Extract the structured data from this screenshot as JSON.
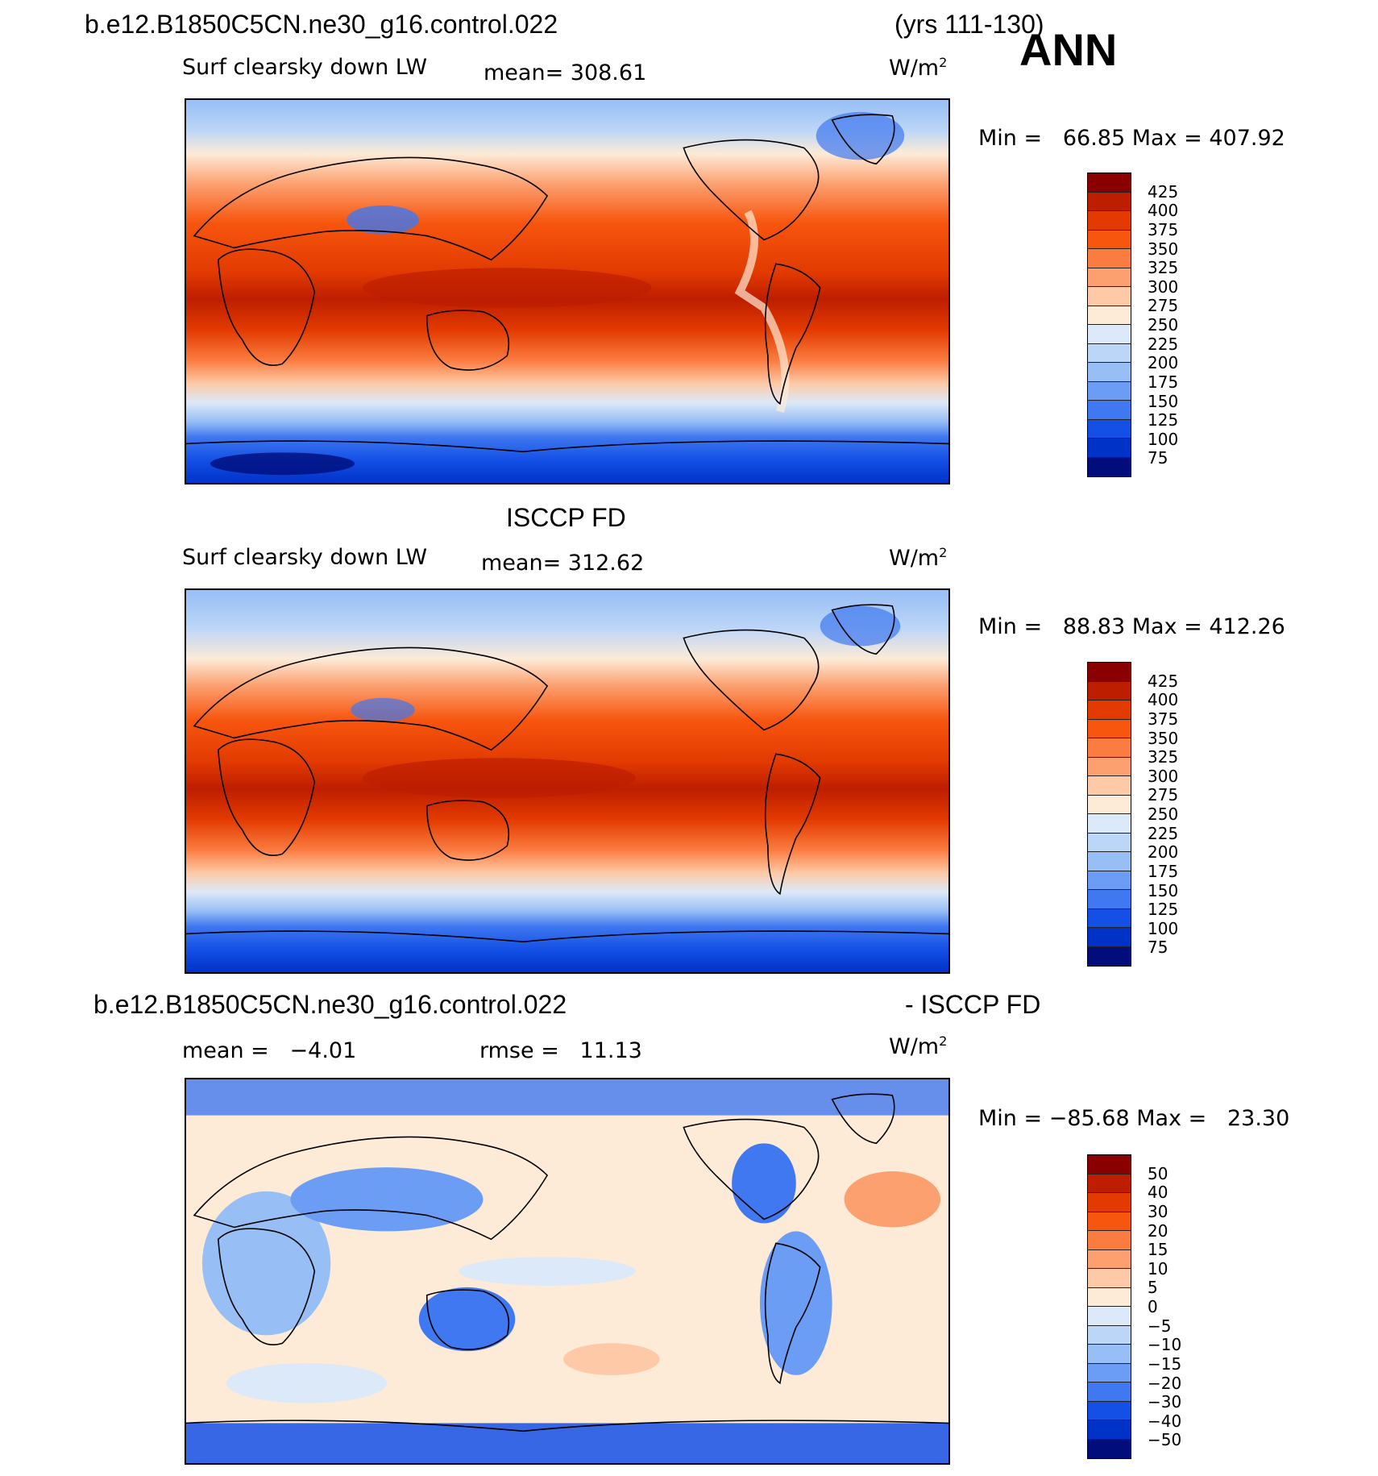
{
  "header": {
    "case": "b.e12.B1850C5CN.ne30_g16.control.022",
    "years": "(yrs 111-130)",
    "season": "ANN"
  },
  "panels": [
    {
      "id": "model",
      "title": "",
      "variable": "Surf clearsky down LW",
      "mean": "mean= 308.61",
      "units": "W/m",
      "units_sup": "2",
      "minmax": "Min =   66.85 Max = 407.92",
      "colorbar": {
        "labels": [
          "425",
          "400",
          "375",
          "350",
          "325",
          "300",
          "275",
          "250",
          "225",
          "200",
          "175",
          "150",
          "125",
          "100",
          "75"
        ],
        "colors": [
          "#8a0000",
          "#be1e00",
          "#e23a00",
          "#f7560f",
          "#fb7c40",
          "#fca070",
          "#fdc9a6",
          "#fdebd7",
          "#dce9f8",
          "#bcd6f7",
          "#97bef5",
          "#6b9df5",
          "#3f78f0",
          "#1450e6",
          "#0032c8",
          "#000d7a"
        ]
      }
    },
    {
      "id": "obs",
      "title": "ISCCP FD",
      "variable": "Surf clearsky down LW",
      "mean": "mean= 312.62",
      "units": "W/m",
      "units_sup": "2",
      "minmax": "Min =   88.83 Max = 412.26",
      "colorbar": {
        "labels": [
          "425",
          "400",
          "375",
          "350",
          "325",
          "300",
          "275",
          "250",
          "225",
          "200",
          "175",
          "150",
          "125",
          "100",
          "75"
        ],
        "colors": [
          "#8a0000",
          "#be1e00",
          "#e23a00",
          "#f7560f",
          "#fb7c40",
          "#fca070",
          "#fdc9a6",
          "#fdebd7",
          "#dce9f8",
          "#bcd6f7",
          "#97bef5",
          "#6b9df5",
          "#3f78f0",
          "#1450e6",
          "#0032c8",
          "#000d7a"
        ]
      }
    },
    {
      "id": "diff",
      "title_left": "b.e12.B1850C5CN.ne30_g16.control.022",
      "title_right": "- ISCCP FD",
      "mean": "mean =   −4.01",
      "rmse": "rmse =   11.13",
      "units": "W/m",
      "units_sup": "2",
      "minmax": "Min = −85.68 Max =   23.30",
      "colorbar": {
        "labels": [
          "50",
          "40",
          "30",
          "20",
          "15",
          "10",
          "5",
          "0",
          "−5",
          "−10",
          "−15",
          "−20",
          "−30",
          "−40",
          "−50"
        ],
        "colors": [
          "#8a0000",
          "#be1e00",
          "#e23a00",
          "#f7560f",
          "#fb7c40",
          "#fca070",
          "#fdc9a6",
          "#fdebd7",
          "#dce9f8",
          "#bcd6f7",
          "#97bef5",
          "#6b9df5",
          "#3f78f0",
          "#1450e6",
          "#0032c8",
          "#000d7a"
        ]
      }
    }
  ]
}
